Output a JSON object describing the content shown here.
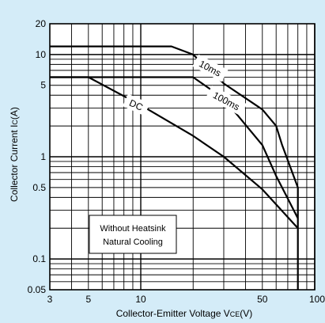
{
  "chart_data": {
    "type": "line",
    "xscale": "log",
    "yscale": "log",
    "xlim": [
      3,
      100
    ],
    "ylim": [
      0.05,
      20
    ],
    "grid": true,
    "colors": {
      "background": "#d4ecf8",
      "plot": "#ffffff",
      "line": "#000000"
    },
    "xlabel_parts": [
      "Collector-Emitter Voltage V",
      "CE",
      "(V)"
    ],
    "ylabel_parts": [
      "Collector Current I",
      "C",
      "(A)"
    ],
    "x_ticks": [
      {
        "value": 3,
        "label": "3"
      },
      {
        "value": 5,
        "label": "5"
      },
      {
        "value": 10,
        "label": "10"
      },
      {
        "value": 50,
        "label": "50"
      },
      {
        "value": 100,
        "label": "100"
      }
    ],
    "y_ticks": [
      {
        "value": 20,
        "label": "20"
      },
      {
        "value": 10,
        "label": "10"
      },
      {
        "value": 5,
        "label": "5"
      },
      {
        "value": 1,
        "label": "1"
      },
      {
        "value": 0.5,
        "label": "0.5"
      },
      {
        "value": 0.1,
        "label": "0.1"
      },
      {
        "value": 0.05,
        "label": "0.05"
      }
    ],
    "series": [
      {
        "name": "10ms",
        "x": [
          3,
          15,
          20,
          30,
          50,
          60,
          65,
          80,
          80
        ],
        "y": [
          12,
          12,
          10,
          5.2,
          2.9,
          2.0,
          1.3,
          0.5,
          0.05
        ]
      },
      {
        "name": "100ms",
        "x": [
          3,
          20,
          30,
          50,
          60,
          80
        ],
        "y": [
          6,
          6,
          3.7,
          1.3,
          0.65,
          0.25
        ]
      },
      {
        "name": "DC",
        "x": [
          3,
          5,
          10,
          20,
          30,
          50,
          80
        ],
        "y": [
          6,
          6,
          3.2,
          1.6,
          1.0,
          0.48,
          0.2
        ]
      }
    ],
    "annotations": [
      "Without Heatsink",
      "Natural Cooling"
    ]
  }
}
